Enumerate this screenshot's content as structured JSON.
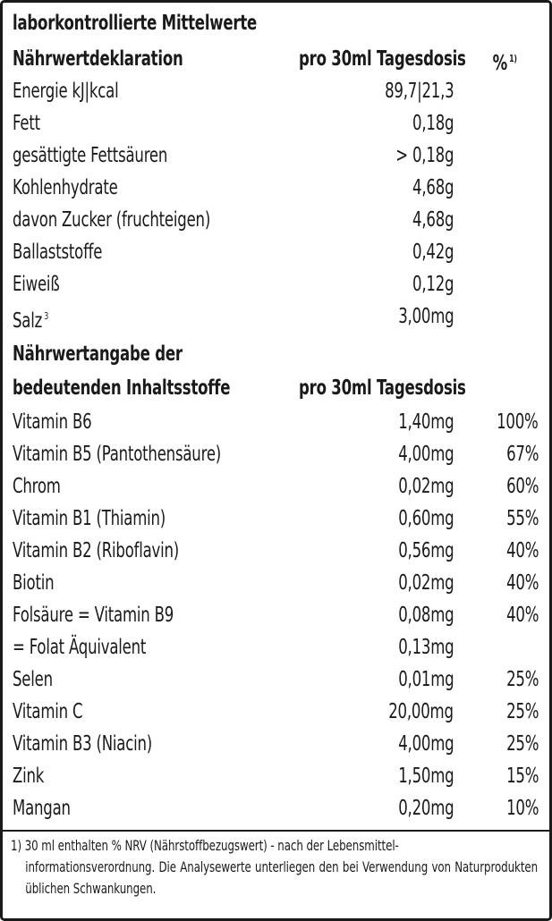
{
  "title": "laborkontrollierte Mittelwerte",
  "section1": {
    "heading": "Nährwertdeklaration",
    "col_amount": "pro 30ml Tagesdosis",
    "col_percent": "%",
    "col_percent_note": "1)",
    "rows": [
      {
        "name": "Energie kJ|kcal",
        "amount": "89,7|21,3"
      },
      {
        "name": "Fett",
        "amount": "0,18g"
      },
      {
        "name": "gesättigte Fettsäuren",
        "amount": "> 0,18g"
      },
      {
        "name": "Kohlenhydrate",
        "amount": "4,68g"
      },
      {
        "name": "davon Zucker (fruchteigen)",
        "amount": "4,68g"
      },
      {
        "name": "Ballaststoffe",
        "amount": "0,42g"
      },
      {
        "name": "Eiweiß",
        "amount": "0,12g"
      },
      {
        "name": "Salz",
        "note": "3",
        "amount": "3,00mg"
      }
    ]
  },
  "section2": {
    "heading_line1": "Nährwertangabe der",
    "heading_line2": "bedeutenden Inhaltsstoffe",
    "col_amount": "pro 30ml Tagesdosis",
    "rows": [
      {
        "name": "Vitamin B6",
        "amount": "1,40mg",
        "percent": "100%"
      },
      {
        "name": "Vitamin B5 (Pantothensäure)",
        "amount": "4,00mg",
        "percent": "67%"
      },
      {
        "name": "Chrom",
        "amount": "0,02mg",
        "percent": "60%"
      },
      {
        "name": "Vitamin B1 (Thiamin)",
        "amount": "0,60mg",
        "percent": "55%"
      },
      {
        "name": "Vitamin B2 (Riboflavin)",
        "amount": "0,56mg",
        "percent": "40%"
      },
      {
        "name": "Biotin",
        "amount": "0,02mg",
        "percent": "40%"
      },
      {
        "name": "Folsäure = Vitamin B9",
        "amount": "0,08mg",
        "percent": "40%"
      },
      {
        "name": "= Folat Äquivalent",
        "amount": "0,13mg",
        "percent": ""
      },
      {
        "name": "Selen",
        "amount": "0,01mg",
        "percent": "25%"
      },
      {
        "name": "Vitamin C",
        "amount": "20,00mg",
        "percent": "25%"
      },
      {
        "name": "Vitamin B3 (Niacin)",
        "amount": "4,00mg",
        "percent": "25%"
      },
      {
        "name": "Zink",
        "amount": "1,50mg",
        "percent": "15%"
      },
      {
        "name": "Mangan",
        "amount": "0,20mg",
        "percent": "10%"
      }
    ]
  },
  "footnote": {
    "line1": "1) 30 ml enthalten % NRV (Nährstoffbezugswert) - nach der Lebensmittel-",
    "rest": "informationsverordnung. Die Analysewerte unterliegen den bei Verwendung von Naturprodukten üblichen Schwankungen."
  }
}
